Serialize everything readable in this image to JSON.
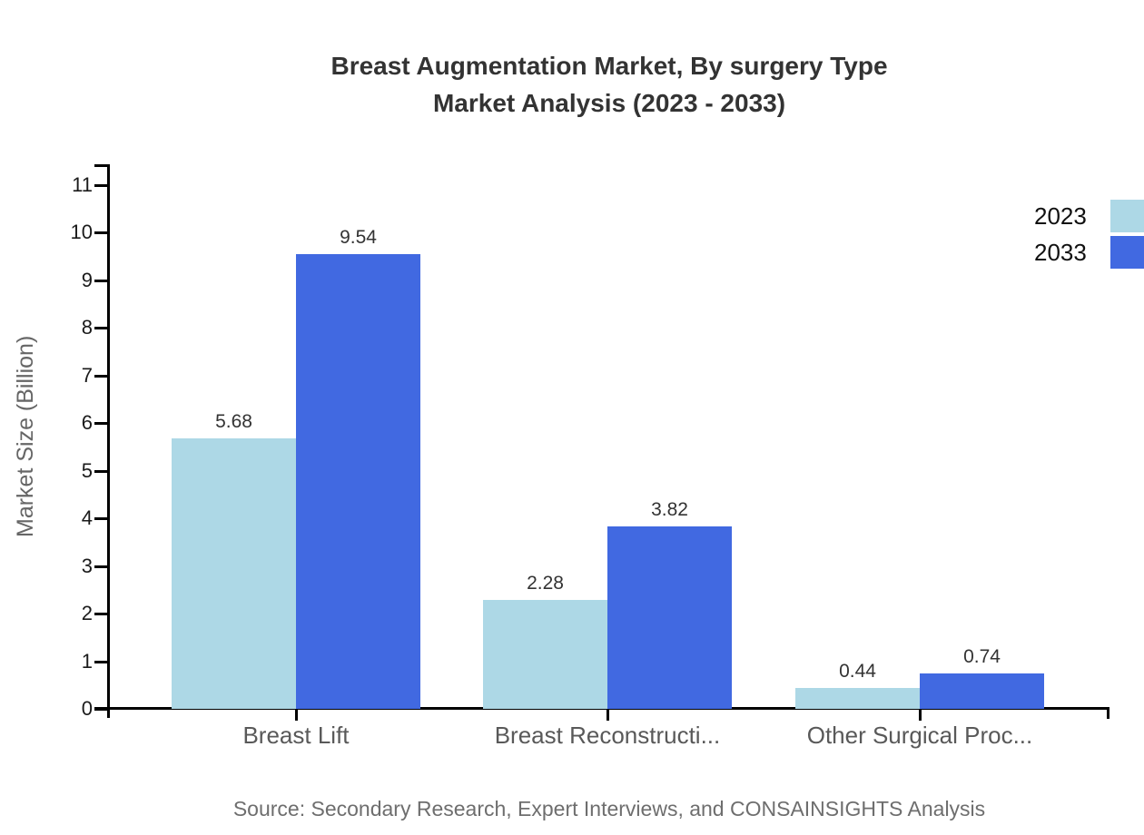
{
  "chart_data": {
    "type": "bar",
    "title_lines": [
      "Breast Augmentation Market, By surgery Type",
      "Market Analysis (2023 - 2033)"
    ],
    "categories": [
      "Breast Lift",
      "Breast Reconstructi...",
      "Other Surgical Proc..."
    ],
    "series": [
      {
        "name": "2023",
        "color": "#ADD8E6",
        "values": [
          5.68,
          2.28,
          0.44
        ]
      },
      {
        "name": "2033",
        "color": "#4169E1",
        "values": [
          9.54,
          3.82,
          0.74
        ]
      }
    ],
    "ylabel": "Market Size (Billion)",
    "ylim": [
      0,
      11
    ],
    "yticks": [
      0,
      1,
      2,
      3,
      4,
      5,
      6,
      7,
      8,
      9,
      10,
      11
    ],
    "grid": false,
    "legend_position": "top-right",
    "value_labels": true,
    "axis_color": "#000000",
    "source": "Source: Secondary Research, Expert Interviews, and CONSAINSIGHTS Analysis"
  }
}
